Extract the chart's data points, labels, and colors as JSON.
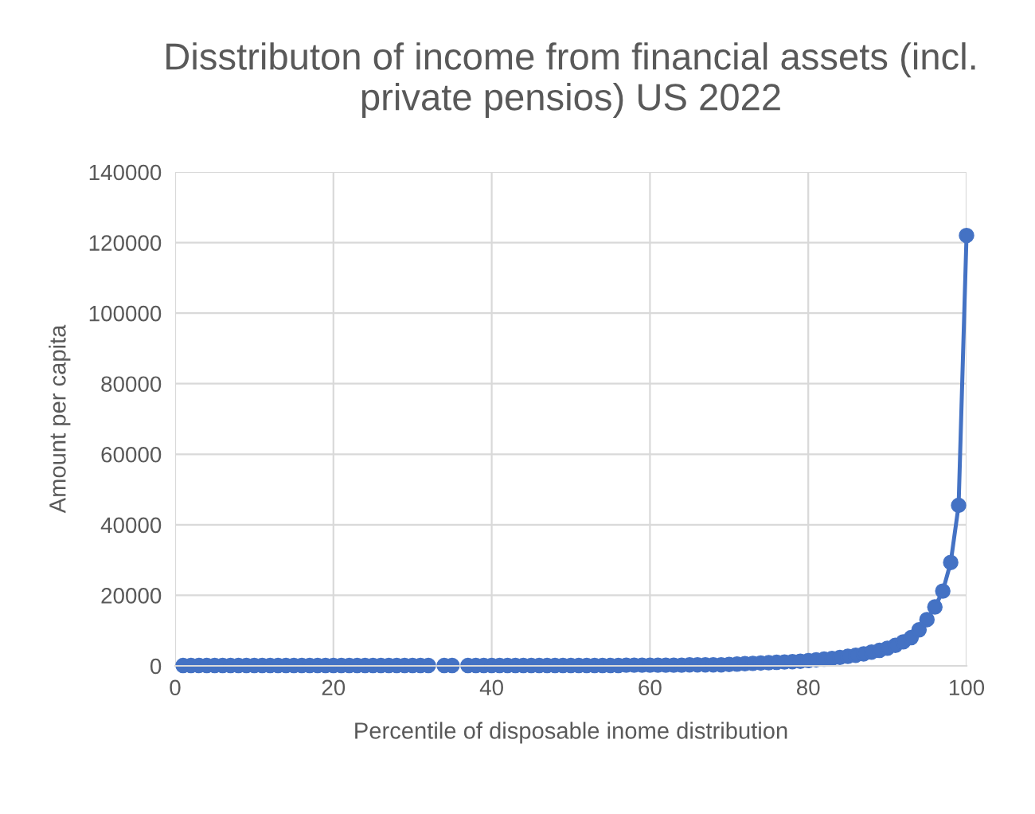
{
  "chart_data": {
    "type": "line",
    "title": "Disstributon of income from financial assets (incl.\nprivate pensios) US 2022",
    "xlabel": "Percentile of disposable inome distribution",
    "ylabel": "Amount per capita",
    "x": [
      1,
      2,
      3,
      4,
      5,
      6,
      7,
      8,
      9,
      10,
      11,
      12,
      13,
      14,
      15,
      16,
      17,
      18,
      19,
      20,
      21,
      22,
      23,
      24,
      25,
      26,
      27,
      28,
      29,
      30,
      31,
      32,
      33,
      34,
      35,
      36,
      37,
      38,
      39,
      40,
      41,
      42,
      43,
      44,
      45,
      46,
      47,
      48,
      49,
      50,
      51,
      52,
      53,
      54,
      55,
      56,
      57,
      58,
      59,
      60,
      61,
      62,
      63,
      64,
      65,
      66,
      67,
      68,
      69,
      70,
      71,
      72,
      73,
      74,
      75,
      76,
      77,
      78,
      79,
      80,
      81,
      82,
      83,
      84,
      85,
      86,
      87,
      88,
      89,
      90,
      91,
      92,
      93,
      94,
      95,
      96,
      97,
      98,
      99,
      100
    ],
    "series": [
      {
        "color": "#4472c4",
        "values": [
          100,
          100,
          100,
          100,
          100,
          100,
          100,
          100,
          100,
          100,
          100,
          100,
          100,
          100,
          100,
          100,
          100,
          100,
          100,
          100,
          100,
          100,
          100,
          100,
          100,
          100,
          100,
          100,
          100,
          100,
          100,
          100,
          null,
          100,
          100,
          null,
          100,
          100,
          100,
          100,
          100,
          100,
          100,
          100,
          100,
          100,
          100,
          100,
          100,
          100,
          100,
          100,
          100,
          100,
          100,
          100,
          200,
          200,
          200,
          200,
          200,
          200,
          200,
          200,
          300,
          300,
          300,
          300,
          300,
          400,
          500,
          600,
          700,
          800,
          900,
          1000,
          1100,
          1200,
          1300,
          1500,
          1700,
          1900,
          2100,
          2400,
          2700,
          3000,
          3400,
          3900,
          4400,
          5000,
          5800,
          6800,
          8000,
          10200,
          13100,
          16700,
          21200,
          29300,
          45500,
          122000
        ]
      }
    ],
    "xlim": [
      0,
      100
    ],
    "xticks": [
      0,
      20,
      40,
      60,
      80,
      100
    ],
    "ylim": [
      0,
      140000
    ],
    "yticks": [
      0,
      20000,
      40000,
      60000,
      80000,
      100000,
      120000,
      140000
    ],
    "grid": true,
    "marker": "circle",
    "line_style": "solid"
  }
}
